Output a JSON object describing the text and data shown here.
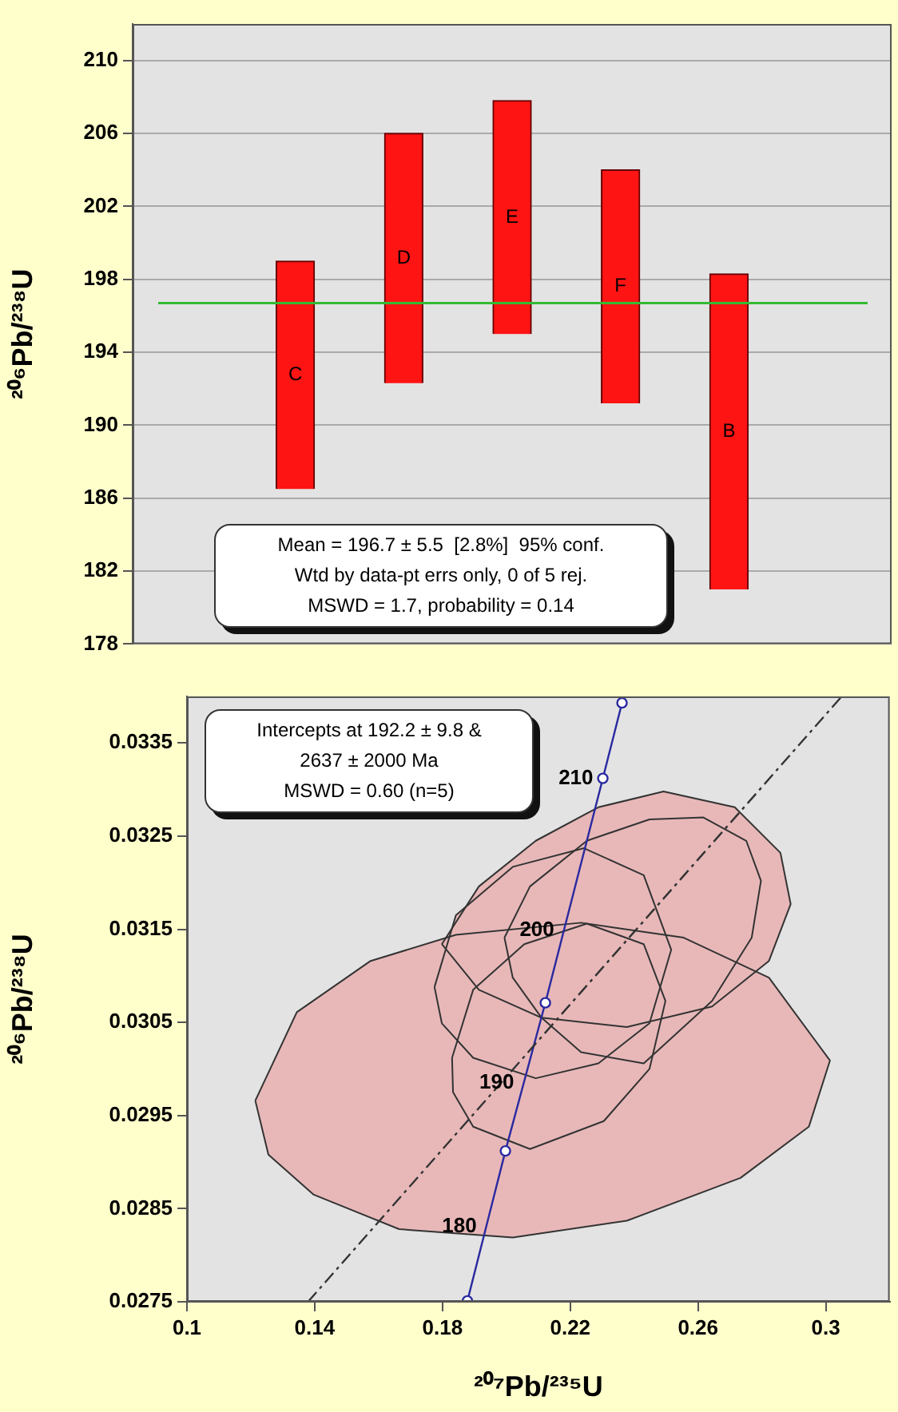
{
  "chart_data": [
    {
      "type": "bar",
      "categories": [
        "C",
        "D",
        "E",
        "F",
        "B"
      ],
      "base": [
        186.5,
        192.3,
        195,
        191.2,
        181
      ],
      "values": [
        12.5,
        13.7,
        12.8,
        12.8,
        17.3
      ],
      "color": "#ff1414",
      "ylabel": "²⁰⁶Pb/²³⁸U",
      "ylim": [
        178,
        212
      ],
      "yticks": [
        178,
        182,
        186,
        190,
        194,
        198,
        202,
        206,
        210
      ],
      "grid": "y",
      "tick_labels": "y",
      "ref_lines": [
        {
          "axis": "y",
          "value": 196.7,
          "color": "#33bb33"
        }
      ],
      "annotations": [
        "Mean = 196.7 ± 5.5  [2.8%]  95% conf.",
        "Wtd by data-pt errs only, 0 of 5 rej.",
        "MSWD = 1.7, probability = 0.14"
      ]
    },
    {
      "type": "line",
      "xlabel": "²⁰⁷Pb/²³⁵U",
      "ylabel": "²⁰⁶Pb/²³⁸U",
      "xlim": [
        0.1,
        0.32
      ],
      "xticks": [
        0.1,
        0.14,
        0.18,
        0.22,
        0.26,
        0.3
      ],
      "ylim": [
        0.0275,
        0.034
      ],
      "yticks": [
        0.0275,
        0.0285,
        0.0295,
        0.0305,
        0.0315,
        0.0325,
        0.0335
      ],
      "grid": false,
      "series": [
        {
          "type": "area",
          "color": "#e8b8b8",
          "x": [
            0.1214,
            0.1344,
            0.1575,
            0.1842,
            0.2234,
            0.2555,
            0.2822,
            0.3013,
            0.2947,
            0.2733,
            0.2377,
            0.202,
            0.1664,
            0.1397,
            0.1255,
            0.1214
          ],
          "values": [
            0.02966,
            0.03061,
            0.03116,
            0.03144,
            0.03157,
            0.03141,
            0.03098,
            0.03009,
            0.02938,
            0.02883,
            0.02837,
            0.02819,
            0.02828,
            0.02865,
            0.02908,
            0.02966
          ]
        },
        {
          "type": "area",
          "color": "#e8b8b8",
          "x": [
            0.1798,
            0.1914,
            0.2092,
            0.2288,
            0.2492,
            0.2715,
            0.2858,
            0.289,
            0.2822,
            0.2644,
            0.2377,
            0.211,
            0.1914,
            0.1798
          ],
          "values": [
            0.03134,
            0.03196,
            0.03245,
            0.03281,
            0.03298,
            0.03281,
            0.03232,
            0.03177,
            0.03116,
            0.03067,
            0.03045,
            0.03055,
            0.03085,
            0.03134
          ]
        },
        {
          "type": "area",
          "color": "#e8b8b8",
          "x": [
            0.1775,
            0.1842,
            0.202,
            0.2243,
            0.243,
            0.2516,
            0.2448,
            0.2288,
            0.2092,
            0.1896,
            0.1798,
            0.1775
          ],
          "values": [
            0.03088,
            0.03165,
            0.03217,
            0.03237,
            0.03208,
            0.03128,
            0.03049,
            0.03006,
            0.0299,
            0.03012,
            0.03049,
            0.03088
          ]
        },
        {
          "type": "area",
          "color": "#e8b8b8",
          "x": [
            0.183,
            0.1896,
            0.2056,
            0.2252,
            0.243,
            0.2498,
            0.2448,
            0.2305,
            0.2074,
            0.1896,
            0.1833,
            0.183
          ],
          "values": [
            0.03012,
            0.03085,
            0.03134,
            0.03156,
            0.03134,
            0.03073,
            0.03,
            0.02944,
            0.02914,
            0.02938,
            0.02975,
            0.03012
          ]
        },
        {
          "type": "area",
          "color": "#e8b8b8",
          "x": [
            0.1994,
            0.2074,
            0.2252,
            0.2448,
            0.2617,
            0.2751,
            0.2797,
            0.2768,
            0.2644,
            0.243,
            0.2234,
            0.211,
            0.202,
            0.1994
          ],
          "values": [
            0.03141,
            0.03196,
            0.03245,
            0.03268,
            0.0327,
            0.03245,
            0.03202,
            0.03141,
            0.03073,
            0.03006,
            0.03018,
            0.03055,
            0.03098,
            0.03141
          ]
        },
        {
          "type": "line",
          "color": "#333333",
          "line_style": "dashed",
          "x": [
            0.1379,
            0.305
          ],
          "values": [
            0.0275,
            0.034
          ]
        },
        {
          "type": "line",
          "color": "#2a2aa0",
          "marker": "circle",
          "x": [
            0.1878,
            0.1997,
            0.2122,
            0.2302,
            0.2362
          ],
          "values": [
            0.02751,
            0.02912,
            0.03071,
            0.03312,
            0.03393
          ]
        }
      ],
      "annotations": [
        "Intercepts at 192.2 ± 9.8 &",
        "2637 ± 2000 Ma",
        "MSWD = 0.60 (n=5)",
        {
          "text": "180",
          "x": 0.1937,
          "y": 0.02831
        },
        {
          "text": "190",
          "x": 0.2054,
          "y": 0.02985
        },
        {
          "text": "200",
          "x": 0.218,
          "y": 0.03149
        },
        {
          "text": "210",
          "x": 0.2302,
          "y": 0.03312
        }
      ]
    }
  ]
}
